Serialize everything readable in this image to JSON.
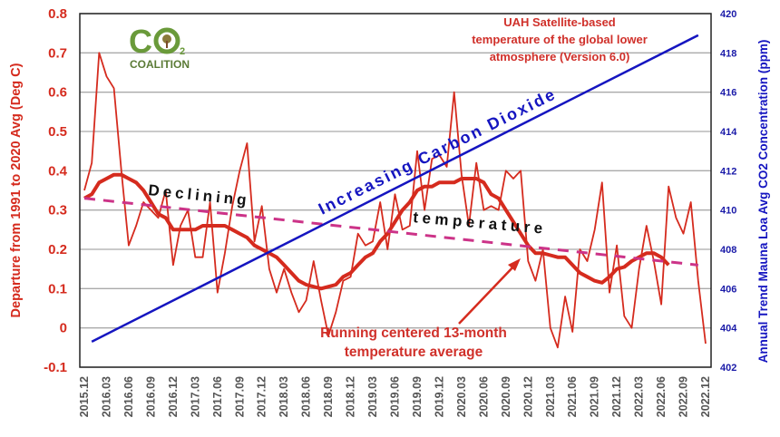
{
  "chart_data": {
    "type": "line",
    "title": "UAH Satellite-based temperature of the global lower atmosphere (Version 6.0)",
    "title_lines": [
      "UAH Satellite-based",
      "temperature of the global lower",
      "atmosphere (Version 6.0)"
    ],
    "ylabel": "Departure from 1991 to 2020 Avg (Deg C)",
    "ylabel_right": "Annual Trend Mauna Loa Avg CO2 Concentration (ppm)",
    "ylim": [
      -0.1,
      0.8
    ],
    "ylim_right": [
      402,
      420
    ],
    "yticks": [
      "0.8",
      "0.7",
      "0.6",
      "0.5",
      "0.4",
      "0.3",
      "0.2",
      "0.1",
      "0",
      "-0.1"
    ],
    "yticks_right": [
      "420",
      "418",
      "416",
      "414",
      "412",
      "410",
      "408",
      "406",
      "404",
      "402"
    ],
    "grid": true,
    "x_months": [
      "2015.12",
      "2016.01",
      "2016.02",
      "2016.03",
      "2016.04",
      "2016.05",
      "2016.06",
      "2016.07",
      "2016.08",
      "2016.09",
      "2016.10",
      "2016.11",
      "2016.12",
      "2017.01",
      "2017.02",
      "2017.03",
      "2017.04",
      "2017.05",
      "2017.06",
      "2017.07",
      "2017.08",
      "2017.09",
      "2017.10",
      "2017.11",
      "2017.12",
      "2018.01",
      "2018.02",
      "2018.03",
      "2018.04",
      "2018.05",
      "2018.06",
      "2018.07",
      "2018.08",
      "2018.09",
      "2018.10",
      "2018.11",
      "2018.12",
      "2019.01",
      "2019.02",
      "2019.03",
      "2019.04",
      "2019.05",
      "2019.06",
      "2019.07",
      "2019.08",
      "2019.09",
      "2019.10",
      "2019.11",
      "2019.12",
      "2020.01",
      "2020.02",
      "2020.03",
      "2020.04",
      "2020.05",
      "2020.06",
      "2020.07",
      "2020.08",
      "2020.09",
      "2020.10",
      "2020.11",
      "2020.12",
      "2021.01",
      "2021.02",
      "2021.03",
      "2021.04",
      "2021.05",
      "2021.06",
      "2021.07",
      "2021.08",
      "2021.09",
      "2021.10",
      "2021.11",
      "2021.12",
      "2022.01",
      "2022.02",
      "2022.03",
      "2022.04",
      "2022.05",
      "2022.06",
      "2022.07",
      "2022.08",
      "2022.09",
      "2022.10",
      "2022.11",
      "2022.12"
    ],
    "xticks": [
      "2015.12",
      "2016.03",
      "2016.06",
      "2016.09",
      "2016.12",
      "2017.03",
      "2017.06",
      "2017.09",
      "2017.12",
      "2018.03",
      "2018.06",
      "2018.09",
      "2018.12",
      "2019.03",
      "2019.06",
      "2019.09",
      "2019.12",
      "2020.03",
      "2020.06",
      "2020.09",
      "2020.12",
      "2021.03",
      "2021.06",
      "2021.09",
      "2021.12",
      "2022.03",
      "2022.06",
      "2022.09",
      "2022.12"
    ],
    "series": [
      {
        "key": "monthly",
        "color": "#d52b1e",
        "values": [
          0.35,
          0.42,
          0.7,
          0.64,
          0.61,
          0.4,
          0.21,
          0.26,
          0.32,
          0.3,
          0.28,
          0.35,
          0.16,
          0.26,
          0.3,
          0.18,
          0.18,
          0.32,
          0.09,
          0.19,
          0.31,
          0.4,
          0.47,
          0.22,
          0.31,
          0.15,
          0.09,
          0.15,
          0.09,
          0.04,
          0.07,
          0.17,
          0.07,
          -0.02,
          0.04,
          0.12,
          0.13,
          0.24,
          0.21,
          0.22,
          0.32,
          0.2,
          0.34,
          0.25,
          0.26,
          0.45,
          0.3,
          0.43,
          0.44,
          0.41,
          0.6,
          0.39,
          0.26,
          0.42,
          0.3,
          0.31,
          0.3,
          0.4,
          0.38,
          0.4,
          0.17,
          0.12,
          0.2,
          0.0,
          -0.05,
          0.08,
          -0.01,
          0.2,
          0.17,
          0.25,
          0.37,
          0.09,
          0.21,
          0.03,
          0.0,
          0.15,
          0.26,
          0.17,
          0.06,
          0.36,
          0.28,
          0.24,
          0.32,
          0.12,
          -0.04
        ]
      },
      {
        "name": "Running centered 13-month temperature average",
        "key": "running",
        "color": "#d52b1e",
        "values": [
          0.33,
          0.34,
          0.37,
          0.38,
          0.39,
          0.39,
          0.38,
          0.37,
          0.35,
          0.32,
          0.29,
          0.28,
          0.25,
          0.25,
          0.25,
          0.25,
          0.26,
          0.26,
          0.26,
          0.26,
          0.25,
          0.24,
          0.23,
          0.21,
          0.2,
          0.19,
          0.18,
          0.16,
          0.14,
          0.12,
          0.11,
          0.105,
          0.1,
          0.105,
          0.11,
          0.13,
          0.14,
          0.16,
          0.18,
          0.19,
          0.22,
          0.24,
          0.27,
          0.3,
          0.32,
          0.35,
          0.36,
          0.36,
          0.37,
          0.37,
          0.37,
          0.38,
          0.38,
          0.38,
          0.37,
          0.34,
          0.33,
          0.3,
          0.27,
          0.24,
          0.21,
          0.19,
          0.19,
          0.185,
          0.18,
          0.18,
          0.16,
          0.14,
          0.13,
          0.12,
          0.115,
          0.13,
          0.15,
          0.155,
          0.17,
          0.18,
          0.19,
          0.19,
          0.18,
          0.16
        ]
      },
      {
        "key": "temp_trend",
        "color": "#cc3388",
        "style": "dashed",
        "start": {
          "x": "2015.12",
          "y": 0.33
        },
        "end": {
          "x": "2022.11",
          "y": 0.16
        }
      },
      {
        "key": "co2_trend",
        "color": "#1515c0",
        "axis": "right",
        "start": {
          "x": "2016.01",
          "y": 403.3
        },
        "end": {
          "x": "2022.11",
          "y": 418.9
        }
      }
    ],
    "annotations": {
      "declining": "Declining",
      "temperature": "temperature",
      "co2": "Increasing Carbon Dioxide",
      "running_lines": [
        "Running centered 13-month",
        "temperature average"
      ]
    }
  },
  "logo": {
    "text": "CO2 COALITION",
    "color": "#6a9a3a"
  }
}
